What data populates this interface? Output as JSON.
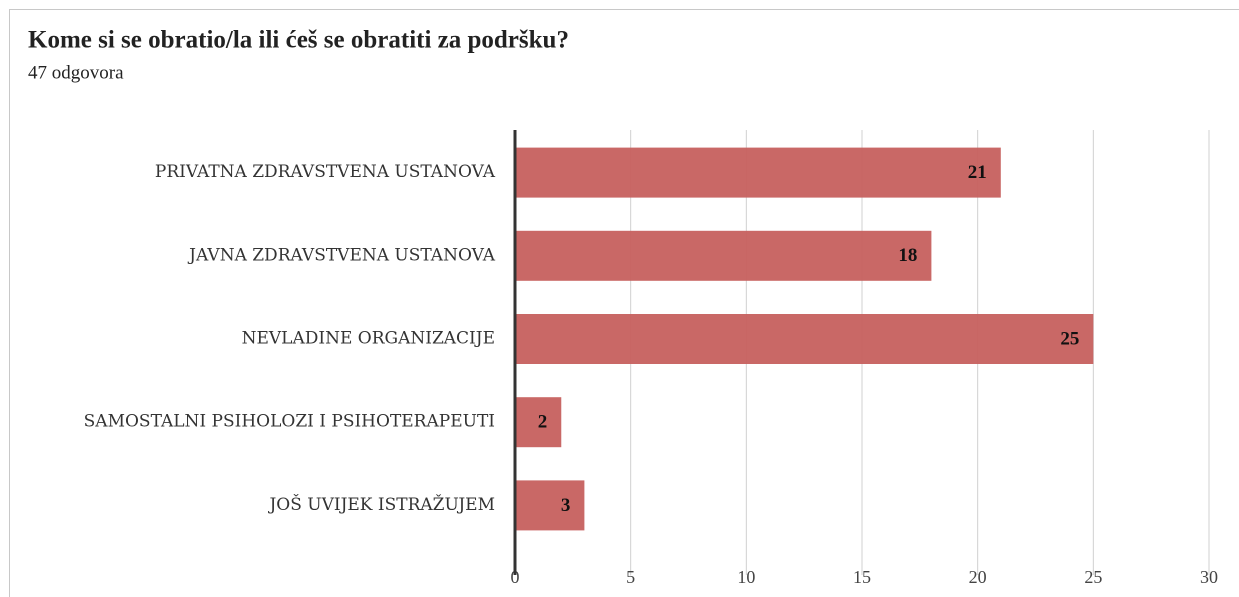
{
  "chart_data": {
    "type": "hbar",
    "title": "Kome si se obratio/la ili ćeš se obratiti za podršku?",
    "subtitle": "47 odgovora",
    "categories": [
      "PRIVATNA ZDRAVSTVENA USTANOVA",
      "JAVNA ZDRAVSTVENA USTANOVA",
      "NEVLADINE ORGANIZACIJE",
      "SAMOSTALNI PSIHOLOZI I PSIHOTERAPEUTI",
      "JOŠ UVIJEK ISTRAŽUJEM"
    ],
    "values": [
      21,
      18,
      25,
      2,
      3
    ],
    "color": "#c6605e",
    "xlim": [
      0,
      30
    ],
    "xticks": [
      0,
      5,
      10,
      15,
      20,
      25,
      30
    ],
    "grid": true
  }
}
